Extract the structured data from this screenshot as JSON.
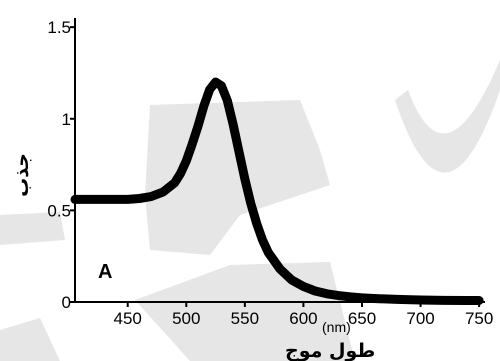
{
  "chart_data": {
    "type": "line",
    "xlabel": "طول موج",
    "xunit": "(nm)",
    "ylabel": "جذب",
    "panel_label": "A",
    "xlim": [
      405,
      755
    ],
    "ylim": [
      0,
      1.55
    ],
    "x_ticks": [
      450,
      500,
      550,
      600,
      650,
      700,
      750
    ],
    "y_ticks": [
      0,
      0.5,
      1,
      1.5
    ],
    "y_tick_labels": [
      "0",
      "0.5",
      "1",
      "1.5"
    ],
    "grid": false,
    "series": [
      {
        "x": [
          405,
          410,
          420,
          430,
          440,
          450,
          460,
          470,
          480,
          490,
          495,
          500,
          505,
          510,
          515,
          520,
          525,
          530,
          535,
          540,
          545,
          550,
          555,
          560,
          565,
          570,
          580,
          590,
          600,
          610,
          620,
          630,
          640,
          650,
          660,
          680,
          700,
          720,
          740,
          750
        ],
        "y": [
          0.56,
          0.56,
          0.56,
          0.56,
          0.56,
          0.56,
          0.565,
          0.575,
          0.6,
          0.65,
          0.7,
          0.77,
          0.86,
          0.96,
          1.07,
          1.16,
          1.2,
          1.18,
          1.1,
          0.97,
          0.82,
          0.67,
          0.54,
          0.43,
          0.34,
          0.27,
          0.18,
          0.12,
          0.085,
          0.06,
          0.045,
          0.035,
          0.028,
          0.023,
          0.019,
          0.014,
          0.011,
          0.009,
          0.008,
          0.008
        ]
      }
    ]
  }
}
